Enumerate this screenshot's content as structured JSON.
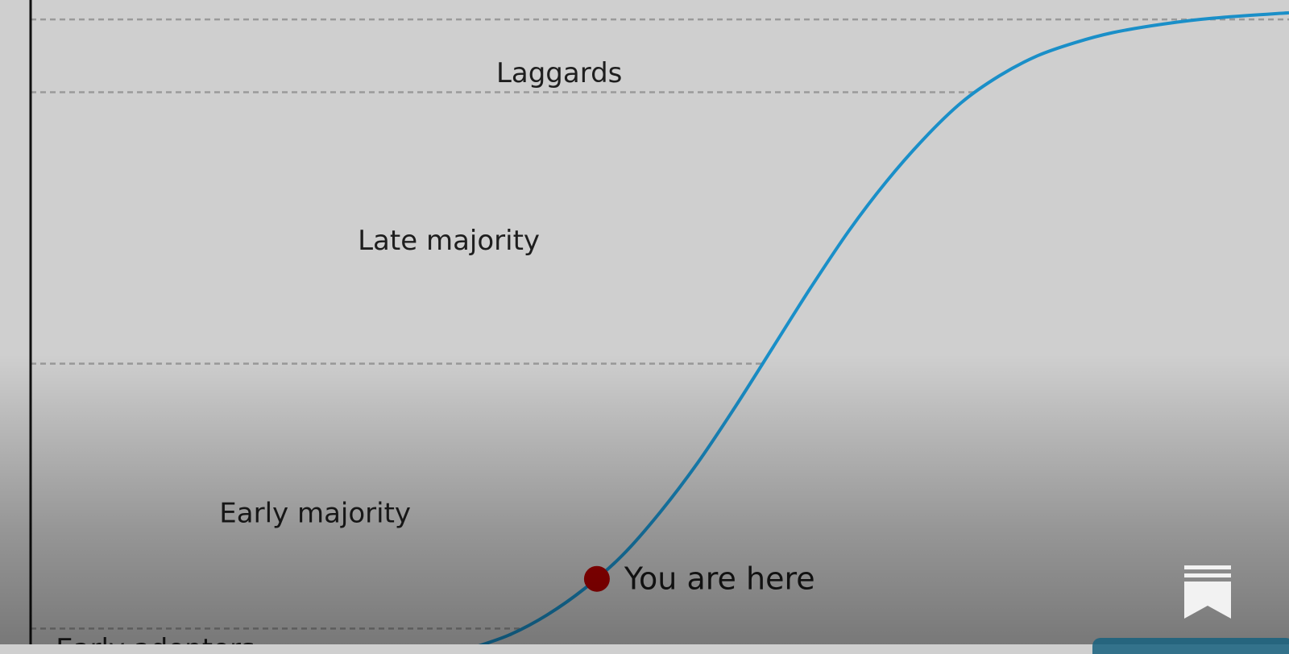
{
  "chart_data": {
    "type": "line",
    "title": "",
    "xlabel": "",
    "ylabel": "",
    "xlim": [
      0,
      100
    ],
    "ylim": [
      0,
      100
    ],
    "grid": false,
    "series": [
      {
        "x": [
          35,
          38,
          41,
          44,
          47,
          50,
          53,
          56,
          59,
          62,
          65,
          68,
          71,
          74,
          77,
          80,
          83,
          86,
          90,
          94,
          100
        ],
        "y": [
          0,
          2,
          5,
          9,
          14,
          20.5,
          28,
          36.5,
          45.5,
          54.5,
          63,
          70.5,
          77,
          82.5,
          86.5,
          89.5,
          91.5,
          93,
          94.3,
          95.2,
          96
        ]
      }
    ],
    "thresholds": [
      {
        "y": 3,
        "label": "Early adopters"
      },
      {
        "y": 43,
        "label": "Late majority"
      },
      {
        "y": 84,
        "label": "Laggards"
      },
      {
        "y": 95,
        "label": ""
      }
    ],
    "segment_labels": [
      {
        "label": "Early adopters",
        "x": 2,
        "y": 0
      },
      {
        "label": "Early majority",
        "x": 15,
        "y": 20.5
      },
      {
        "label": "Late majority",
        "x": 26,
        "y": 61.7
      },
      {
        "label": "Laggards",
        "x": 37,
        "y": 87
      }
    ],
    "marker": {
      "label": "You are here",
      "x": 45,
      "y": 10.5
    }
  },
  "colors": {
    "background": "#cfcfcf",
    "curve": "#1a8fc8",
    "marker": "#b10000",
    "threshold": "#9a9a9a",
    "axis": "#111111",
    "text": "#1e1e1e"
  },
  "badge_icon": "bookmark-icon"
}
